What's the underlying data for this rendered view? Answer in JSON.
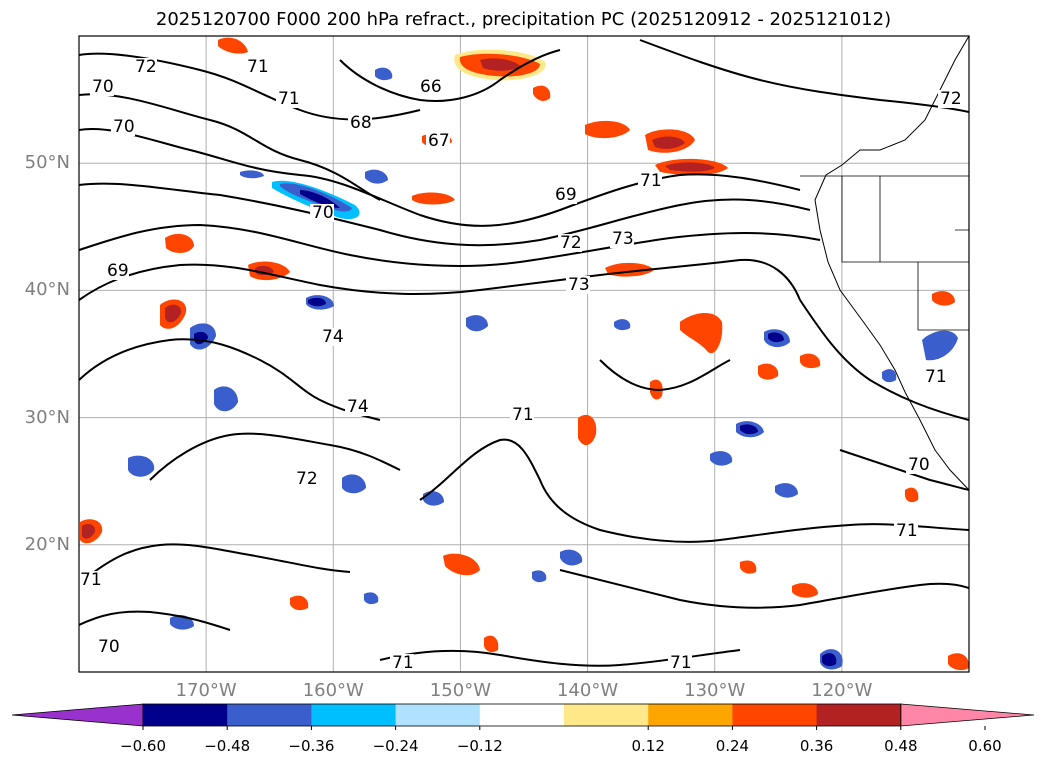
{
  "title": "2025120700 F000 200 hPa refract., precipitation PC (2025120912 - 2025121012)",
  "lat_labels": [
    {
      "text": "50°N",
      "lat": 50
    },
    {
      "text": "40°N",
      "lat": 40
    },
    {
      "text": "30°N",
      "lat": 30
    },
    {
      "text": "20°N",
      "lat": 20
    }
  ],
  "lon_labels": [
    {
      "text": "170°W",
      "lon": -170
    },
    {
      "text": "160°W",
      "lon": -160
    },
    {
      "text": "150°W",
      "lon": -150
    },
    {
      "text": "140°W",
      "lon": -140
    },
    {
      "text": "130°W",
      "lon": -130
    },
    {
      "text": "120°W",
      "lon": -120
    }
  ],
  "contour_labels": [
    "72",
    "70",
    "71",
    "66",
    "70",
    "68",
    "67",
    "71",
    "72",
    "70",
    "69",
    "71",
    "72",
    "73",
    "69",
    "73",
    "74",
    "74",
    "71",
    "72",
    "71",
    "70",
    "70",
    "71",
    "71",
    "71",
    "71"
  ],
  "colorbar": {
    "ticks": [
      "−0.60",
      "−0.48",
      "−0.36",
      "−0.24",
      "−0.12",
      "0.12",
      "0.24",
      "0.36",
      "0.48",
      "0.60"
    ],
    "colors": [
      "#9932cc",
      "#00008b",
      "#3a5fcd",
      "#00bfff",
      "#b0e2ff",
      "#ffffff",
      "#ffe88a",
      "#ffa500",
      "#ff4500",
      "#b22222",
      "#ff86a6"
    ]
  }
}
